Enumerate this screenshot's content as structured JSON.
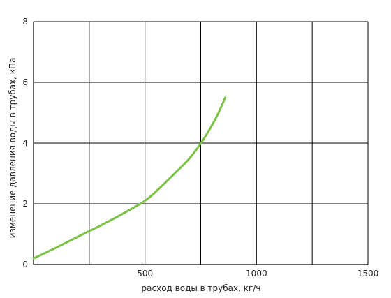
{
  "chart_data": {
    "type": "line",
    "xlabel": "расход воды в трубах, кг/ч",
    "ylabel": "изменение давления воды в трубах, кПа",
    "xlim": [
      0,
      1500
    ],
    "ylim": [
      0,
      8
    ],
    "x_ticks": [
      500,
      1000,
      1500
    ],
    "y_ticks": [
      0,
      2,
      4,
      6,
      8
    ],
    "x_gridlines": [
      250,
      500,
      750,
      1000,
      1250,
      1500
    ],
    "y_gridlines": [
      2,
      4,
      6,
      8
    ],
    "grid": true,
    "series_color": "#7ac143",
    "grid_color": "#000000",
    "series": [
      {
        "x": [
          0,
          100,
          200,
          250,
          300,
          400,
          500,
          560,
          640,
          700,
          760,
          820,
          860
        ],
        "y": [
          0.2,
          0.55,
          0.92,
          1.1,
          1.28,
          1.67,
          2.1,
          2.48,
          3.05,
          3.5,
          4.1,
          4.85,
          5.5
        ]
      }
    ]
  }
}
